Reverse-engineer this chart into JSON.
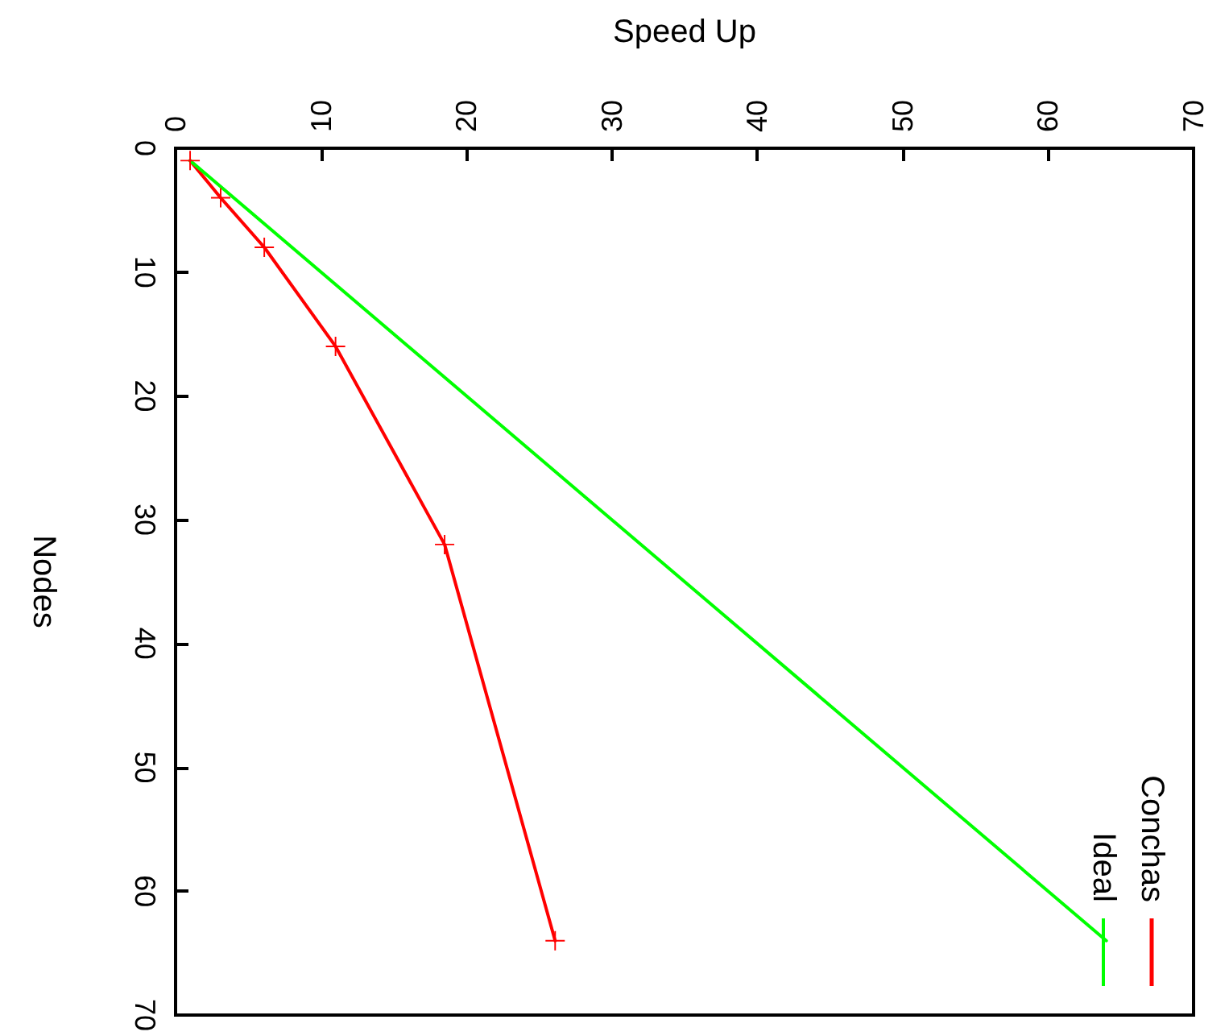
{
  "chart_data": {
    "type": "line",
    "xlabel": "Speed Up",
    "ylabel": "Nodes",
    "xlim": [
      0,
      70
    ],
    "xticks": [
      0,
      10,
      20,
      30,
      40,
      50,
      60,
      70
    ],
    "ylim": [
      70,
      0
    ],
    "yticks": [
      0,
      10,
      20,
      30,
      40,
      50,
      60,
      70
    ],
    "grid": false,
    "legend": "bottom right",
    "line_style": "solid",
    "series": [
      {
        "name": "Conchas",
        "color": "#ff0000",
        "marker": "cross",
        "x": [
          1,
          3.1,
          6.1,
          11,
          18.5,
          26.1
        ],
        "values": [
          1,
          4,
          8,
          16,
          32,
          64
        ]
      },
      {
        "name": "Ideal",
        "color": "#00ff00",
        "marker": "none",
        "x": [
          1,
          64
        ],
        "values": [
          1,
          64
        ]
      }
    ]
  }
}
